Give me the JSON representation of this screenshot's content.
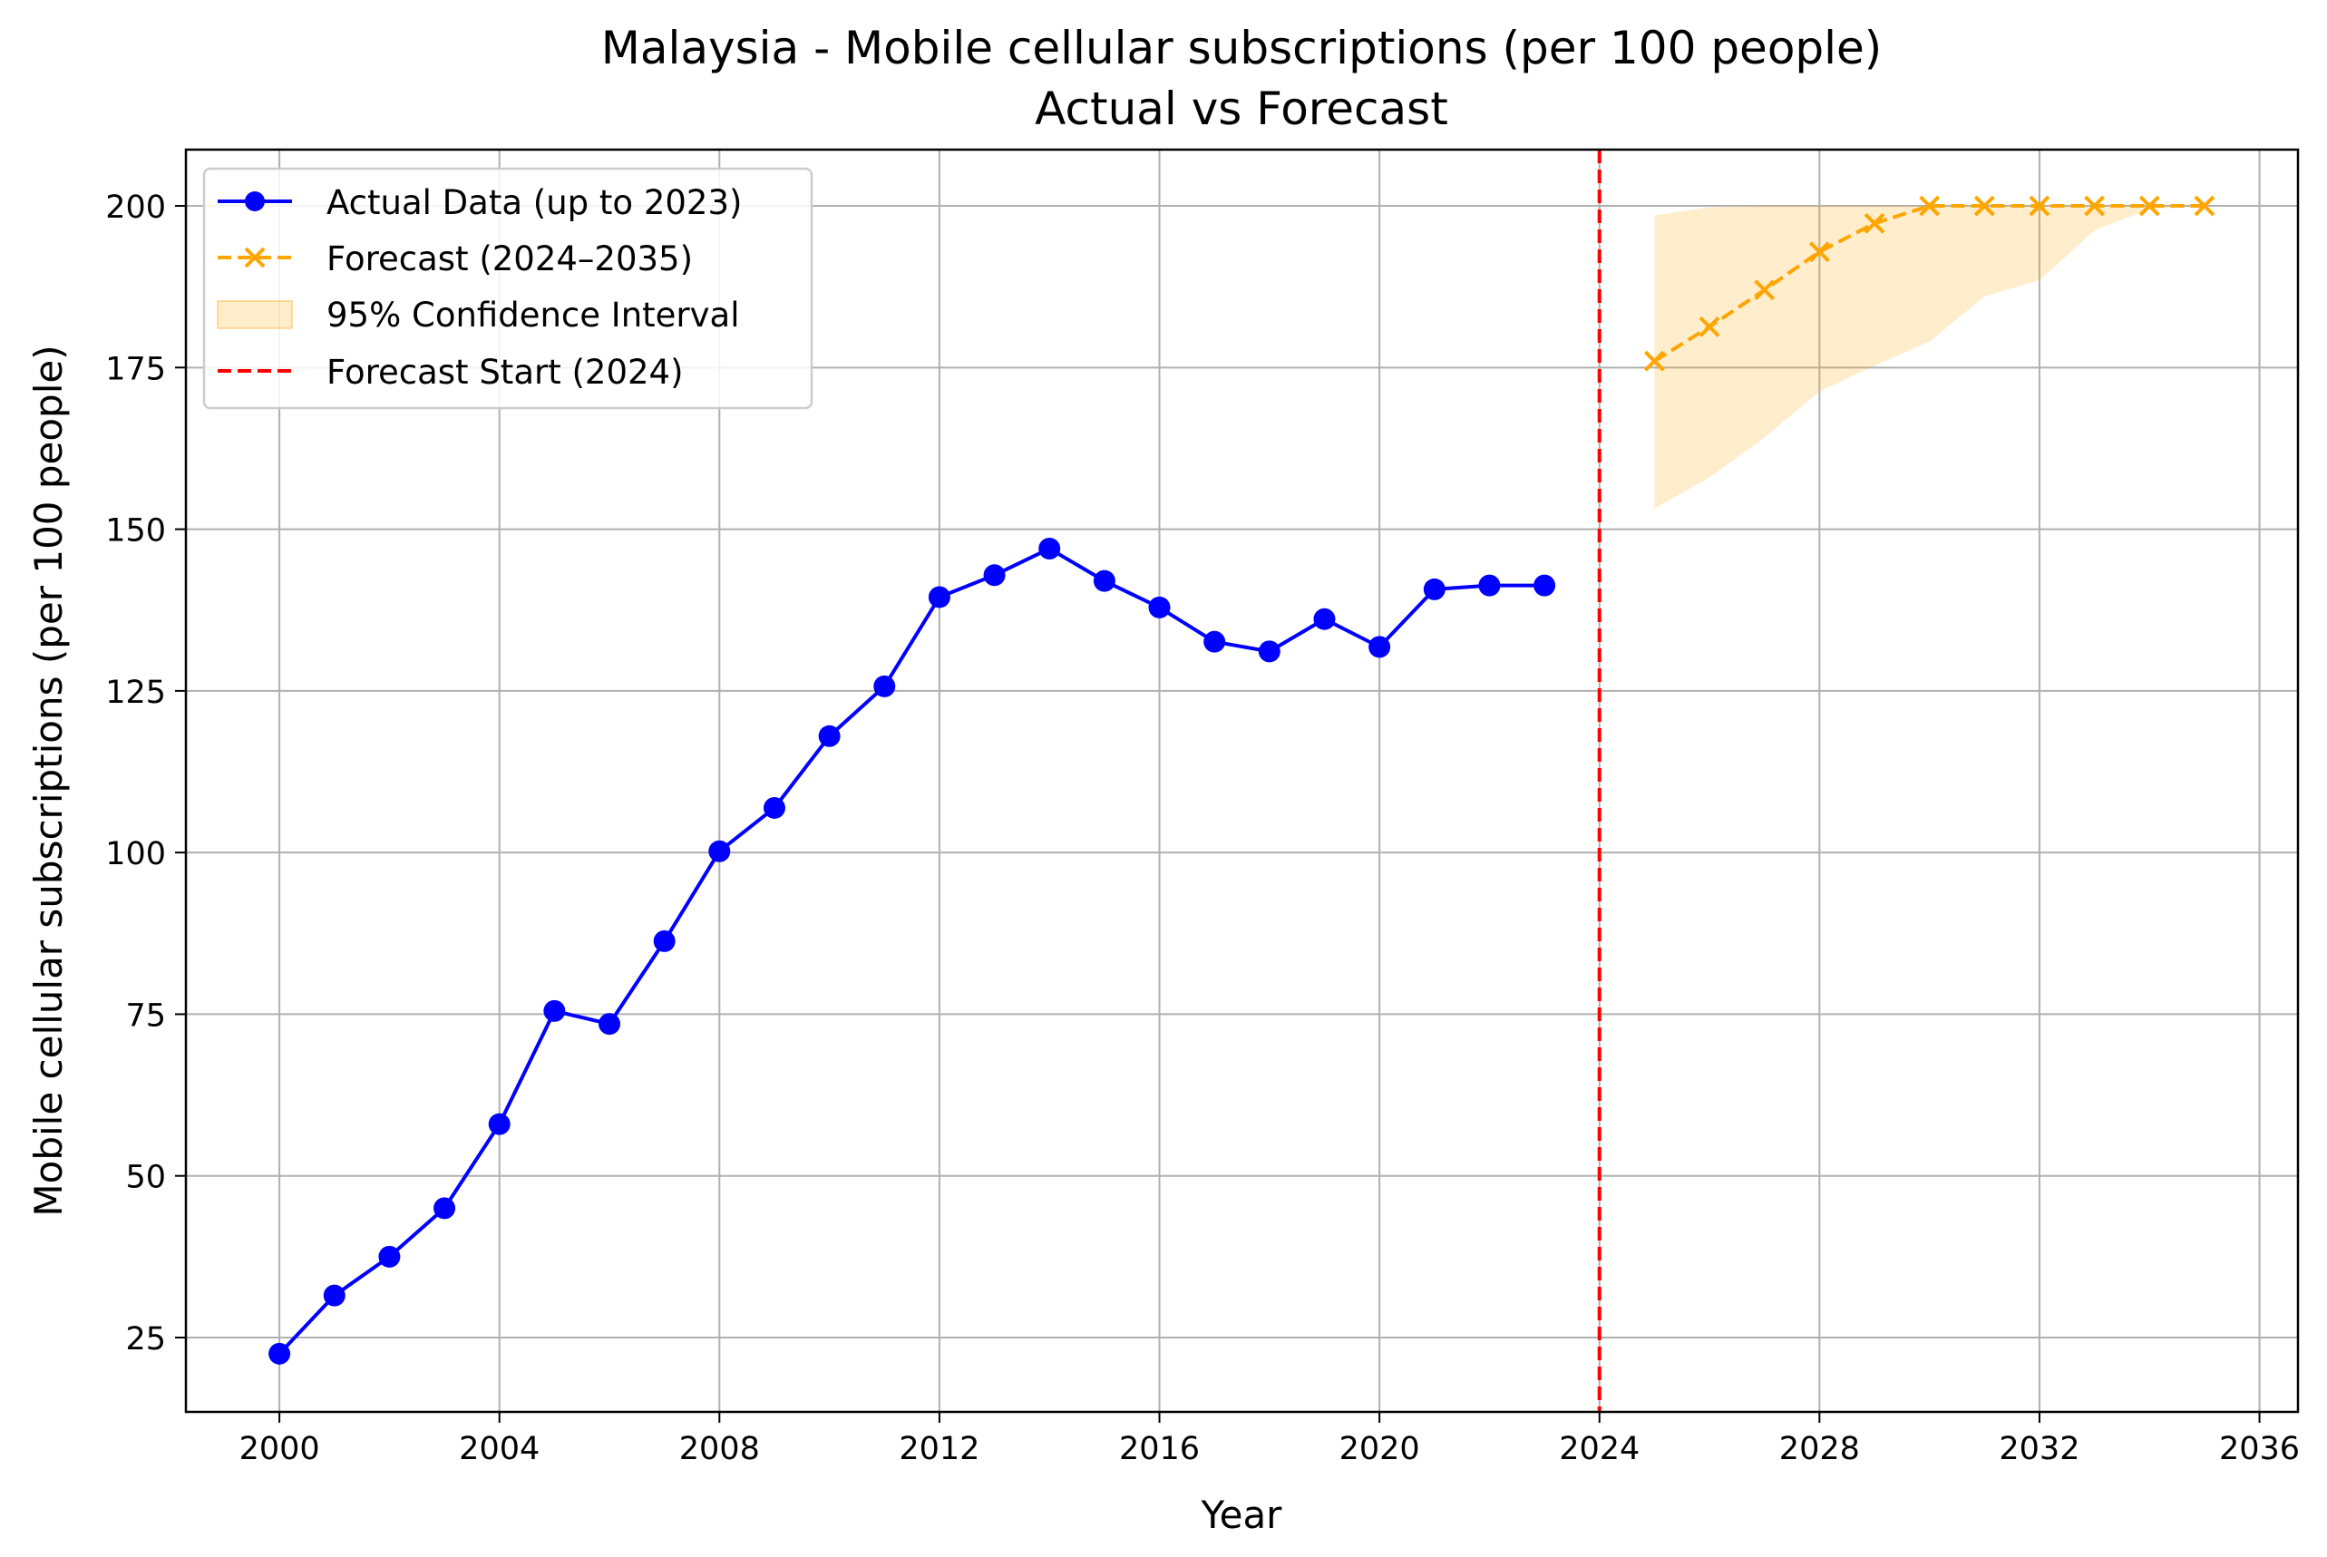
{
  "chart_data": {
    "type": "line",
    "title": "Malaysia - Mobile cellular subscriptions (per 100 people)",
    "subtitle": "Actual vs Forecast",
    "xlabel": "Year",
    "ylabel": "Mobile cellular subscriptions (per 100 people)",
    "xlim": [
      1998.3,
      2036.7
    ],
    "ylim": [
      13.5,
      208.7
    ],
    "xticks": [
      2000,
      2004,
      2008,
      2012,
      2016,
      2020,
      2024,
      2028,
      2032,
      2036
    ],
    "yticks": [
      25,
      50,
      75,
      100,
      125,
      150,
      175,
      200
    ],
    "grid": true,
    "legend_position": "top-left",
    "series": [
      {
        "name": "Actual Data (up to 2023)",
        "kind": "line-marker-circle",
        "color": "#0000ff",
        "x": [
          2000,
          2001,
          2002,
          2003,
          2004,
          2005,
          2006,
          2007,
          2008,
          2009,
          2010,
          2011,
          2012,
          2013,
          2014,
          2015,
          2016,
          2017,
          2018,
          2019,
          2020,
          2021,
          2022,
          2023
        ],
        "y": [
          22.5,
          31.5,
          37.5,
          45.0,
          58.0,
          75.5,
          73.5,
          86.3,
          100.2,
          106.9,
          118.0,
          125.7,
          139.5,
          142.9,
          147.0,
          142.0,
          137.9,
          132.6,
          131.1,
          136.1,
          131.8,
          140.7,
          141.3,
          141.3
        ]
      },
      {
        "name": "Forecast (2024–2035)",
        "kind": "dashed-marker-x",
        "color": "#ffa500",
        "x": [
          2025,
          2026,
          2027,
          2028,
          2029,
          2030,
          2031,
          2032,
          2033,
          2034,
          2035
        ],
        "y": [
          176.0,
          181.3,
          187.0,
          192.9,
          197.3,
          200.0,
          200.0,
          200.0,
          200.0,
          200.0,
          200.0
        ]
      },
      {
        "name": "95% Confidence Interval",
        "kind": "band",
        "color": "#ffa500",
        "x": [
          2025,
          2026,
          2027,
          2028,
          2029,
          2030,
          2031,
          2032,
          2033,
          2034,
          2035
        ],
        "lower": [
          153.2,
          158.0,
          164.2,
          171.3,
          175.3,
          179.0,
          186.0,
          188.5,
          196.2,
          199.5,
          200.0
        ],
        "upper": [
          198.5,
          199.8,
          200.0,
          200.0,
          200.0,
          200.0,
          200.0,
          200.0,
          200.0,
          200.0,
          200.0
        ]
      },
      {
        "name": "Forecast Start (2024)",
        "kind": "vline",
        "color": "#ff0000",
        "x": 2024
      }
    ]
  }
}
